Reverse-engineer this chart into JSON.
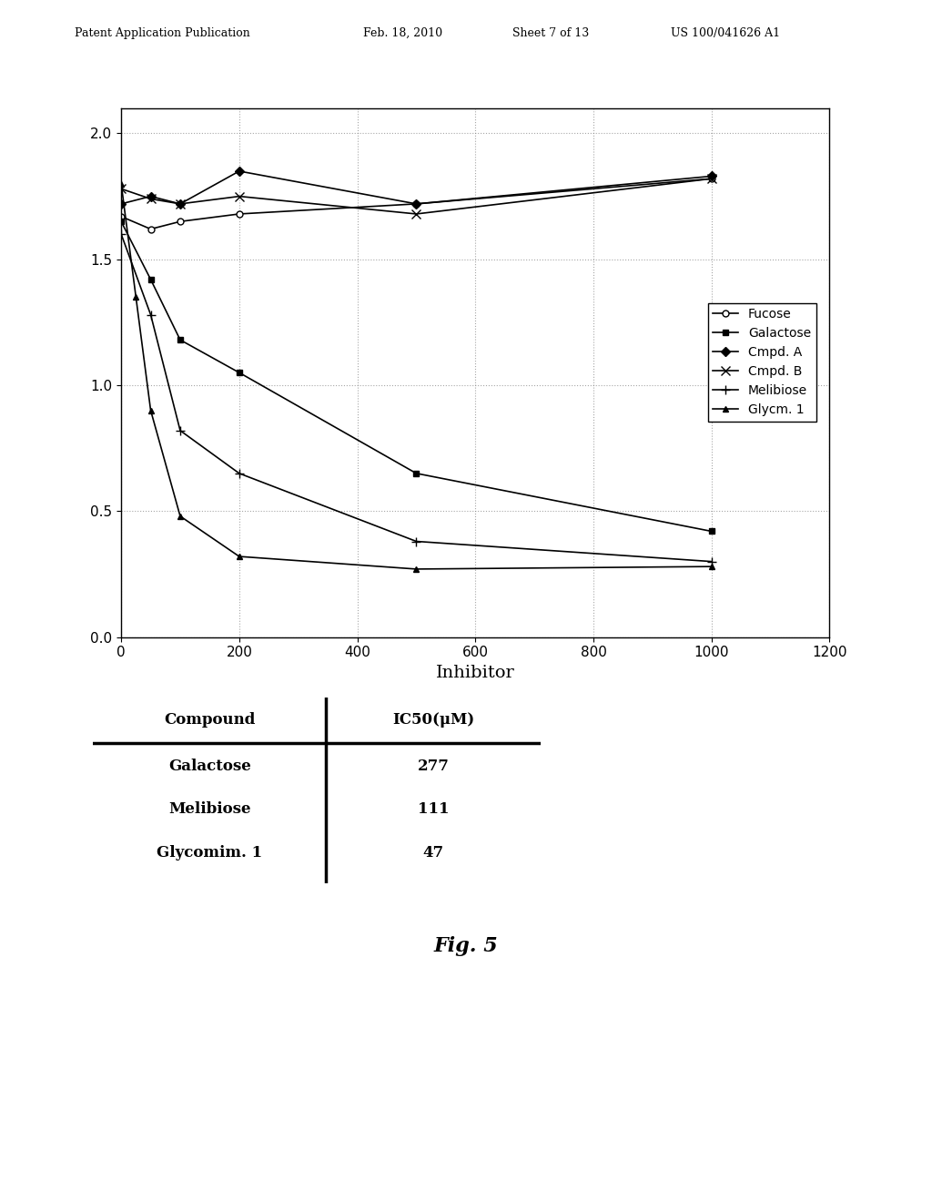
{
  "xlabel": "Inhibitor",
  "fig_label": "Fig. 5",
  "series": {
    "Fucose": {
      "x": [
        0,
        50,
        100,
        200,
        500,
        1000
      ],
      "y": [
        1.67,
        1.62,
        1.65,
        1.68,
        1.72,
        1.82
      ]
    },
    "Galactose": {
      "x": [
        0,
        50,
        100,
        200,
        500,
        1000
      ],
      "y": [
        1.65,
        1.42,
        1.18,
        1.05,
        0.65,
        0.42
      ]
    },
    "Cmpd. A": {
      "x": [
        0,
        50,
        100,
        200,
        500,
        1000
      ],
      "y": [
        1.72,
        1.75,
        1.72,
        1.85,
        1.72,
        1.83
      ]
    },
    "Cmpd. B": {
      "x": [
        0,
        50,
        100,
        200,
        500,
        1000
      ],
      "y": [
        1.78,
        1.74,
        1.72,
        1.75,
        1.68,
        1.82
      ]
    },
    "Melibiose": {
      "x": [
        0,
        50,
        100,
        200,
        500,
        1000
      ],
      "y": [
        1.6,
        1.28,
        0.82,
        0.65,
        0.38,
        0.3
      ]
    },
    "Glycm. 1": {
      "x": [
        0,
        25,
        50,
        100,
        200,
        500,
        1000
      ],
      "y": [
        1.8,
        1.35,
        0.9,
        0.48,
        0.32,
        0.27,
        0.28
      ]
    }
  },
  "markers": {
    "Fucose": "o",
    "Galactose": "s",
    "Cmpd. A": "D",
    "Cmpd. B": "x",
    "Melibiose": "+",
    "Glycm. 1": "^"
  },
  "xlim": [
    0,
    1200
  ],
  "ylim": [
    0,
    2.1
  ],
  "xticks": [
    0,
    200,
    400,
    600,
    800,
    1000,
    1200
  ],
  "yticks": [
    0,
    0.5,
    1,
    1.5,
    2
  ],
  "table_headers": [
    "Compound",
    "IC50(μM)"
  ],
  "table_rows": [
    [
      "Galactose",
      "277"
    ],
    [
      "Melibiose",
      "111"
    ],
    [
      "Glycomim. 1",
      "47"
    ]
  ],
  "header_texts": [
    [
      "Patent Application Publication",
      0.08
    ],
    [
      "Feb. 18, 2010",
      0.39
    ],
    [
      "Sheet 7 of 13",
      0.55
    ],
    [
      "US 100/041626 A1",
      0.72
    ]
  ]
}
